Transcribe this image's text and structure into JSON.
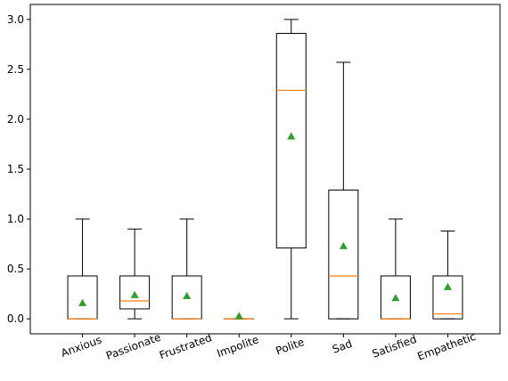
{
  "chart_data": {
    "type": "box",
    "title": "",
    "xlabel": "",
    "ylabel": "",
    "ylim": [
      -0.15,
      3.15
    ],
    "yticks": [
      "0.0",
      "0.5",
      "1.0",
      "1.5",
      "2.0",
      "2.5",
      "3.0"
    ],
    "grid": false,
    "colors": {
      "box": "#000000",
      "median": "#ff7f0e",
      "mean_marker": "#2ca02c"
    },
    "categories": [
      "Anxious",
      "Passionate",
      "Frustrated",
      "Impolite",
      "Polite",
      "Sad",
      "Satisfied",
      "Empathetic"
    ],
    "boxes": [
      {
        "label": "Anxious",
        "whisker_low": 0.0,
        "q1": 0.0,
        "median": 0.0,
        "q3": 0.43,
        "whisker_high": 1.0,
        "mean": 0.16
      },
      {
        "label": "Passionate",
        "whisker_low": 0.0,
        "q1": 0.1,
        "median": 0.18,
        "q3": 0.43,
        "whisker_high": 0.9,
        "mean": 0.24
      },
      {
        "label": "Frustrated",
        "whisker_low": 0.0,
        "q1": 0.0,
        "median": 0.0,
        "q3": 0.43,
        "whisker_high": 1.0,
        "mean": 0.23
      },
      {
        "label": "Impolite",
        "whisker_low": 0.0,
        "q1": 0.0,
        "median": 0.0,
        "q3": 0.0,
        "whisker_high": 0.0,
        "mean": 0.03
      },
      {
        "label": "Polite",
        "whisker_low": 0.0,
        "q1": 0.71,
        "median": 2.29,
        "q3": 2.86,
        "whisker_high": 3.0,
        "mean": 1.83
      },
      {
        "label": "Sad",
        "whisker_low": 0.0,
        "q1": 0.0,
        "median": 0.43,
        "q3": 1.29,
        "whisker_high": 2.57,
        "mean": 0.73
      },
      {
        "label": "Satisfied",
        "whisker_low": 0.0,
        "q1": 0.0,
        "median": 0.0,
        "q3": 0.43,
        "whisker_high": 1.0,
        "mean": 0.21
      },
      {
        "label": "Empathetic",
        "whisker_low": 0.0,
        "q1": 0.0,
        "median": 0.05,
        "q3": 0.43,
        "whisker_high": 0.88,
        "mean": 0.32
      }
    ]
  }
}
